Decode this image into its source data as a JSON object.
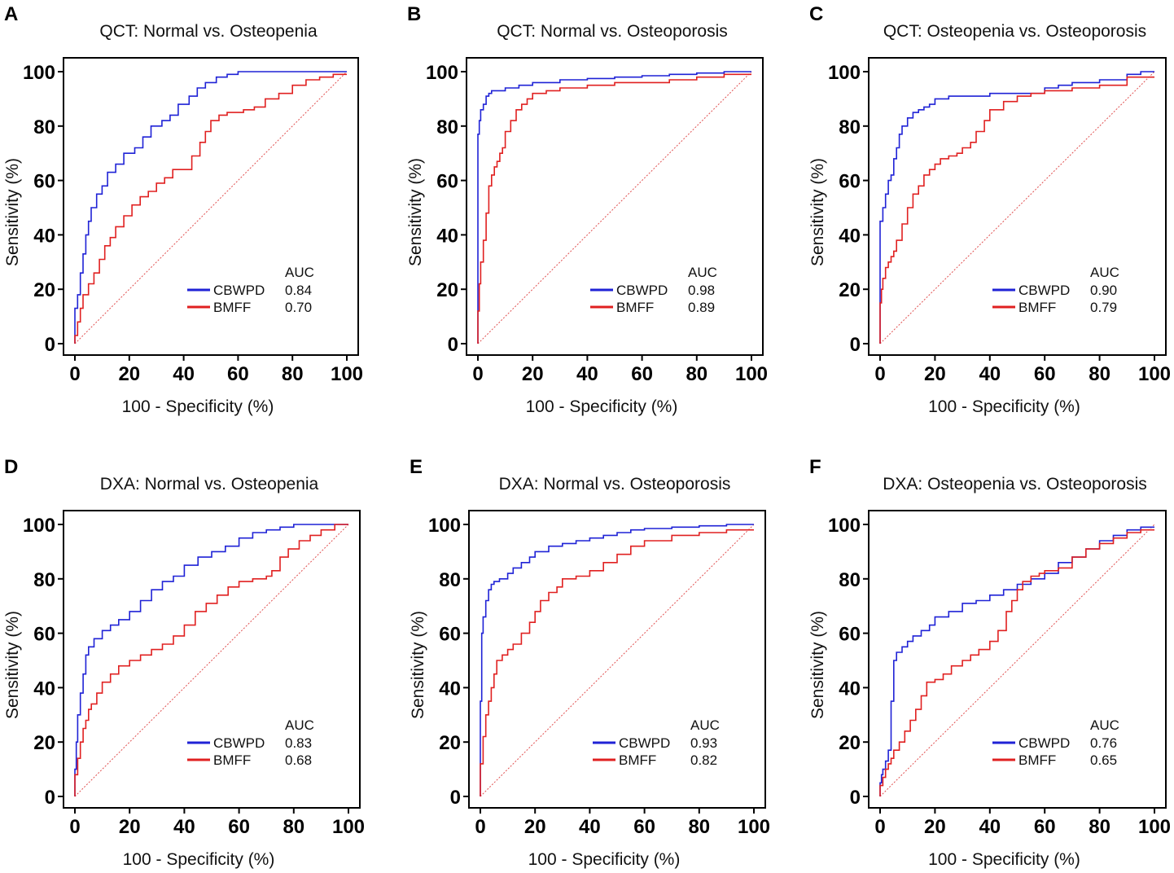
{
  "figure": {
    "panels": [
      "A",
      "B",
      "C",
      "D",
      "E",
      "F"
    ],
    "diagonal_color": "#e05050"
  },
  "legend": {
    "auc_header": "AUC",
    "series_colors": [
      "#1f22d6",
      "#e02020"
    ]
  },
  "chart_data": [
    {
      "type": "line",
      "panel_letter": "A",
      "title": "QCT: Normal vs. Osteopenia",
      "xlabel": "100 - Specificity (%)",
      "ylabel": "Sensitivity (%)",
      "xlim": [
        0,
        100
      ],
      "ylim": [
        0,
        100
      ],
      "xticks": [
        "0",
        "20",
        "40",
        "60",
        "80",
        "100"
      ],
      "yticks": [
        "0",
        "20",
        "40",
        "60",
        "80",
        "100"
      ],
      "series": [
        {
          "name": "CBWPD",
          "auc": "0.84",
          "color": "#1f22d6",
          "x": [
            0,
            0,
            1,
            2,
            3,
            4,
            5,
            6,
            8,
            10,
            12,
            15,
            18,
            22,
            25,
            28,
            32,
            35,
            38,
            42,
            45,
            48,
            52,
            56,
            60,
            65,
            70,
            80,
            90,
            100
          ],
          "y": [
            0,
            10,
            13,
            18,
            26,
            33,
            40,
            45,
            50,
            55,
            58,
            63,
            66,
            70,
            72,
            76,
            80,
            82,
            84,
            88,
            91,
            94,
            96,
            98,
            99,
            100,
            100,
            100,
            100,
            100
          ]
        },
        {
          "name": "BMFF",
          "auc": "0.70",
          "color": "#e02020",
          "x": [
            0,
            1,
            2,
            3,
            5,
            7,
            9,
            11,
            13,
            15,
            18,
            21,
            24,
            27,
            30,
            33,
            36,
            40,
            43,
            46,
            48,
            50,
            53,
            56,
            58,
            62,
            66,
            70,
            75,
            80,
            85,
            90,
            95,
            100
          ],
          "y": [
            0,
            3,
            8,
            13,
            18,
            22,
            26,
            31,
            36,
            39,
            43,
            47,
            51,
            54,
            56,
            59,
            61,
            64,
            64,
            69,
            74,
            78,
            82,
            84,
            85,
            85,
            86,
            87,
            90,
            92,
            95,
            97,
            98,
            99
          ]
        }
      ]
    },
    {
      "type": "line",
      "panel_letter": "B",
      "title": "QCT: Normal vs. Osteoporosis",
      "xlabel": "100 - Specificity (%)",
      "ylabel": "Sensitivity (%)",
      "xlim": [
        0,
        100
      ],
      "ylim": [
        0,
        100
      ],
      "xticks": [
        "0",
        "20",
        "40",
        "60",
        "80",
        "100"
      ],
      "yticks": [
        "0",
        "20",
        "40",
        "60",
        "80",
        "100"
      ],
      "series": [
        {
          "name": "CBWPD",
          "auc": "0.98",
          "color": "#1f22d6",
          "x": [
            0,
            0,
            0.5,
            1,
            2,
            3,
            4,
            5,
            10,
            15,
            20,
            30,
            40,
            50,
            60,
            70,
            80,
            90,
            100
          ],
          "y": [
            0,
            55,
            77,
            82,
            86,
            88,
            91,
            92,
            93,
            94,
            95,
            96,
            97,
            97.5,
            98,
            98.5,
            99,
            99.5,
            100
          ]
        },
        {
          "name": "BMFF",
          "auc": "0.89",
          "color": "#e02020",
          "x": [
            0,
            0.5,
            1,
            2,
            3,
            4,
            5,
            6,
            7,
            8,
            9,
            10,
            12,
            14,
            16,
            18,
            20,
            25,
            30,
            40,
            50,
            60,
            70,
            80,
            90,
            100
          ],
          "y": [
            0,
            12,
            22,
            30,
            38,
            48,
            58,
            62,
            65,
            67,
            70,
            72,
            78,
            82,
            86,
            88,
            90,
            92,
            93,
            94,
            95,
            96,
            96,
            97,
            98,
            99
          ]
        }
      ]
    },
    {
      "type": "line",
      "panel_letter": "C",
      "title": "QCT: Osteopenia vs. Osteoporosis",
      "xlabel": "100 - Specificity (%)",
      "ylabel": "Sensitivity (%)",
      "xlim": [
        0,
        100
      ],
      "ylim": [
        0,
        100
      ],
      "xticks": [
        "0",
        "20",
        "40",
        "60",
        "80",
        "100"
      ],
      "yticks": [
        "0",
        "20",
        "40",
        "60",
        "80",
        "100"
      ],
      "series": [
        {
          "name": "CBWPD",
          "auc": "0.90",
          "color": "#1f22d6",
          "x": [
            0,
            0,
            1,
            2,
            3,
            4,
            5,
            6,
            7,
            8,
            10,
            12,
            14,
            16,
            18,
            20,
            25,
            30,
            40,
            50,
            60,
            65,
            70,
            80,
            90,
            95,
            100
          ],
          "y": [
            0,
            40,
            45,
            50,
            55,
            60,
            62,
            68,
            72,
            77,
            80,
            83,
            85,
            86,
            87,
            88,
            90,
            91,
            91,
            92,
            92,
            94,
            95,
            96,
            97,
            99,
            100
          ]
        },
        {
          "name": "BMFF",
          "auc": "0.79",
          "color": "#e02020",
          "x": [
            0,
            0.5,
            1,
            2,
            3,
            4,
            5,
            6,
            8,
            10,
            12,
            14,
            16,
            18,
            20,
            22,
            25,
            28,
            30,
            33,
            35,
            38,
            40,
            45,
            50,
            55,
            60,
            65,
            70,
            80,
            90,
            100
          ],
          "y": [
            0,
            15,
            20,
            24,
            28,
            30,
            32,
            34,
            38,
            44,
            50,
            55,
            58,
            62,
            64,
            66,
            68,
            69,
            70,
            72,
            74,
            78,
            82,
            86,
            89,
            91,
            92,
            93,
            93,
            94,
            95,
            98
          ]
        }
      ]
    },
    {
      "type": "line",
      "panel_letter": "D",
      "title": "DXA: Normal vs. Osteopenia",
      "xlabel": "100 - Specificity (%)",
      "ylabel": "Sensitivity (%)",
      "xlim": [
        0,
        100
      ],
      "ylim": [
        0,
        100
      ],
      "xticks": [
        "0",
        "20",
        "40",
        "60",
        "80",
        "100"
      ],
      "yticks": [
        "0",
        "20",
        "40",
        "60",
        "80",
        "100"
      ],
      "series": [
        {
          "name": "CBWPD",
          "auc": "0.83",
          "color": "#1f22d6",
          "x": [
            0,
            0.5,
            1,
            2,
            3,
            4,
            5,
            7,
            10,
            13,
            16,
            20,
            24,
            28,
            32,
            36,
            40,
            45,
            50,
            55,
            60,
            65,
            70,
            75,
            80,
            85,
            90,
            100
          ],
          "y": [
            0,
            10,
            20,
            30,
            38,
            45,
            52,
            55,
            58,
            61,
            63,
            65,
            68,
            72,
            76,
            79,
            81,
            85,
            88,
            90,
            92,
            95,
            97,
            98,
            99,
            100,
            100,
            100
          ]
        },
        {
          "name": "BMFF",
          "auc": "0.68",
          "color": "#e02020",
          "x": [
            0,
            1,
            2,
            3,
            4,
            5,
            6,
            8,
            10,
            13,
            16,
            20,
            24,
            28,
            32,
            36,
            40,
            44,
            48,
            52,
            56,
            60,
            65,
            70,
            72,
            75,
            78,
            82,
            86,
            90,
            95,
            100
          ],
          "y": [
            0,
            8,
            14,
            20,
            25,
            28,
            32,
            34,
            38,
            42,
            45,
            48,
            50,
            52,
            54,
            56,
            59,
            63,
            68,
            71,
            74,
            77,
            79,
            80,
            81,
            83,
            88,
            91,
            94,
            96,
            98,
            100
          ]
        }
      ]
    },
    {
      "type": "line",
      "panel_letter": "E",
      "title": "DXA: Normal vs. Osteoporosis",
      "xlabel": "100 - Specificity (%)",
      "ylabel": "Sensitivity (%)",
      "xlim": [
        0,
        100
      ],
      "ylim": [
        0,
        100
      ],
      "xticks": [
        "0",
        "20",
        "40",
        "60",
        "80",
        "100"
      ],
      "yticks": [
        "0",
        "20",
        "40",
        "60",
        "80",
        "100"
      ],
      "series": [
        {
          "name": "CBWPD",
          "auc": "0.93",
          "color": "#1f22d6",
          "x": [
            0,
            0.5,
            1,
            2,
            3,
            4,
            5,
            7,
            10,
            12,
            15,
            18,
            20,
            25,
            30,
            35,
            40,
            45,
            50,
            55,
            60,
            70,
            80,
            90,
            100
          ],
          "y": [
            0,
            35,
            60,
            66,
            72,
            76,
            78,
            79,
            80,
            82,
            84,
            86,
            88,
            90,
            92,
            93,
            94,
            95,
            96,
            97,
            98,
            98.5,
            99,
            99.5,
            100
          ]
        },
        {
          "name": "BMFF",
          "auc": "0.82",
          "color": "#e02020",
          "x": [
            0,
            1,
            2,
            3,
            4,
            5,
            6,
            8,
            10,
            12,
            15,
            18,
            20,
            22,
            25,
            28,
            30,
            35,
            40,
            45,
            50,
            55,
            60,
            70,
            80,
            90,
            100
          ],
          "y": [
            0,
            12,
            22,
            30,
            35,
            40,
            45,
            50,
            52,
            54,
            56,
            60,
            64,
            68,
            72,
            75,
            77,
            80,
            81,
            83,
            86,
            89,
            92,
            94,
            96,
            97,
            98
          ]
        }
      ]
    },
    {
      "type": "line",
      "panel_letter": "F",
      "title": "DXA: Osteopenia vs. Osteoporosis",
      "xlabel": "100 - Specificity (%)",
      "ylabel": "Sensitivity (%)",
      "xlim": [
        0,
        100
      ],
      "ylim": [
        0,
        100
      ],
      "xticks": [
        "0",
        "20",
        "40",
        "60",
        "80",
        "100"
      ],
      "yticks": [
        "0",
        "20",
        "40",
        "60",
        "80",
        "100"
      ],
      "series": [
        {
          "name": "CBWPD",
          "auc": "0.76",
          "color": "#1f22d6",
          "x": [
            0,
            0.5,
            1,
            2,
            3,
            4,
            5,
            6,
            8,
            10,
            12,
            15,
            18,
            20,
            25,
            30,
            35,
            40,
            45,
            50,
            55,
            60,
            65,
            70,
            75,
            80,
            85,
            90,
            95,
            100
          ],
          "y": [
            0,
            5,
            8,
            10,
            13,
            17,
            35,
            50,
            53,
            55,
            57,
            59,
            61,
            63,
            66,
            68,
            71,
            72,
            74,
            76,
            78,
            80,
            82,
            86,
            88,
            91,
            94,
            96,
            98,
            99
          ]
        },
        {
          "name": "BMFF",
          "auc": "0.65",
          "color": "#e02020",
          "x": [
            0,
            1,
            2,
            3,
            4,
            5,
            7,
            9,
            11,
            13,
            15,
            17,
            20,
            23,
            26,
            30,
            33,
            36,
            40,
            43,
            46,
            48,
            50,
            52,
            55,
            58,
            60,
            65,
            70,
            75,
            80,
            85,
            90,
            95,
            100
          ],
          "y": [
            0,
            4,
            7,
            10,
            12,
            14,
            17,
            20,
            24,
            28,
            32,
            37,
            42,
            43,
            45,
            48,
            50,
            52,
            54,
            57,
            61,
            68,
            72,
            76,
            79,
            81,
            82,
            83,
            84,
            88,
            91,
            93,
            95,
            97,
            98
          ]
        }
      ]
    }
  ]
}
